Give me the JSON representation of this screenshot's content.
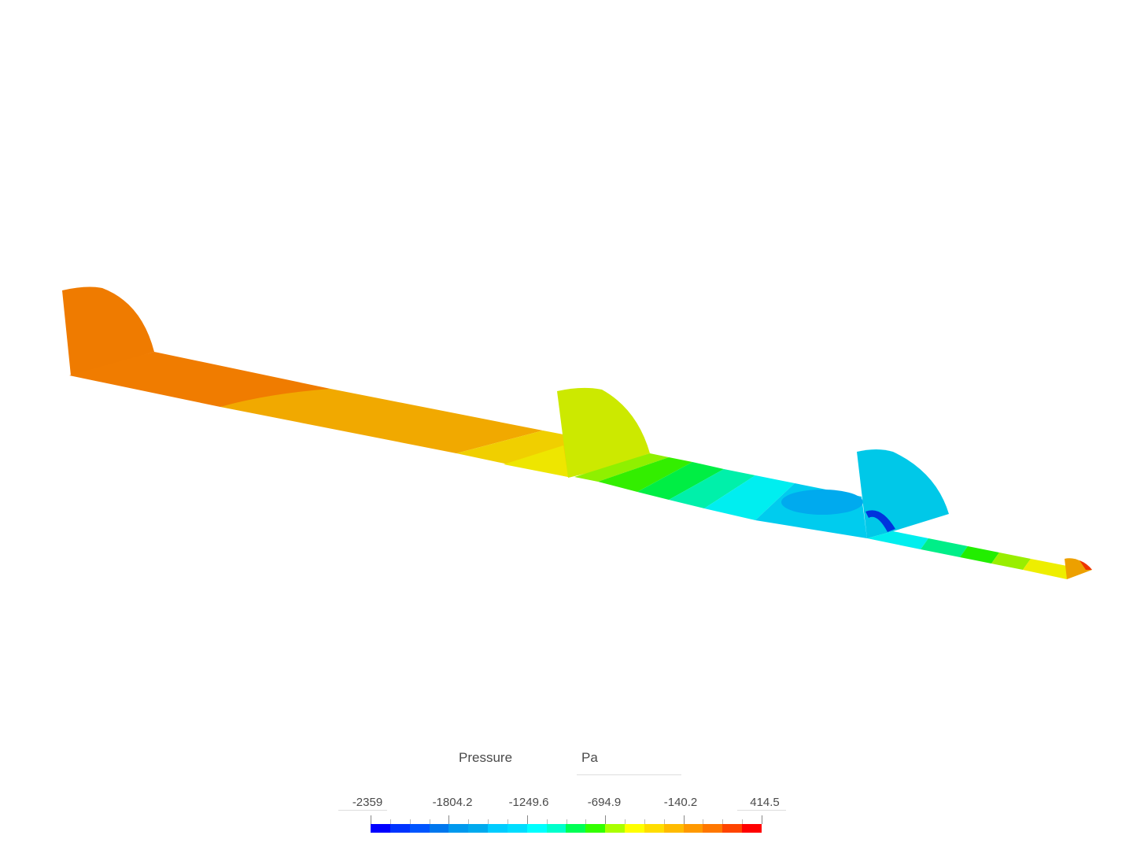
{
  "viewport": {
    "description": "3D CFD pressure contour of a wing section with three end-plate fins",
    "background": "#ffffff"
  },
  "legend": {
    "title": "Pressure",
    "unit": "Pa",
    "min": -2359,
    "max": 414.5,
    "tick_labels": [
      "-2359",
      "-1804.2",
      "-1249.6",
      "-694.9",
      "-140.2",
      "414.5"
    ],
    "colors": [
      "#0000ff",
      "#0033ff",
      "#0055ff",
      "#0077ee",
      "#0099ee",
      "#00aaee",
      "#00ccff",
      "#00ddff",
      "#00ffff",
      "#00ffcc",
      "#00ff55",
      "#33ff00",
      "#aaff00",
      "#ffff00",
      "#ffdd00",
      "#ffbb00",
      "#ff9900",
      "#ff7700",
      "#ff4400",
      "#ff0000"
    ]
  },
  "geometry_colors": {
    "fin_left": "#ef7b00",
    "fin_middle": "#cce900",
    "fin_right": "#00c8e8",
    "tip": "#eda000"
  }
}
